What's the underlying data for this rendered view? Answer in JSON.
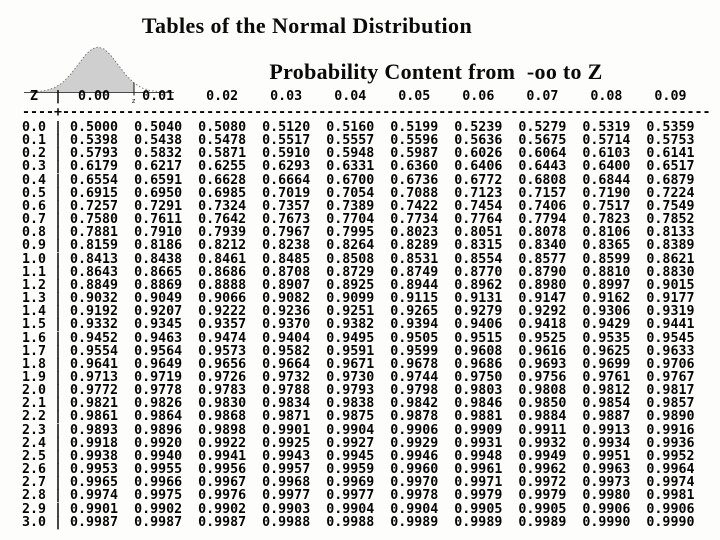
{
  "header": {
    "title": "Tables of the Normal Distribution",
    "subtitle": "Probability Content from  -oo to Z"
  },
  "figure": {
    "z_marker_label": "z"
  },
  "chart_data": {
    "type": "table",
    "title": "Tables of the Normal Distribution",
    "subtitle": "Probability Content from  -oo to Z",
    "corner_label": "Z",
    "columns": [
      "0.00",
      "0.01",
      "0.02",
      "0.03",
      "0.04",
      "0.05",
      "0.06",
      "0.07",
      "0.08",
      "0.09"
    ],
    "rows": [
      {
        "label": "0.0",
        "values": [
          "0.5000",
          "0.5040",
          "0.5080",
          "0.5120",
          "0.5160",
          "0.5199",
          "0.5239",
          "0.5279",
          "0.5319",
          "0.5359"
        ]
      },
      {
        "label": "0.1",
        "values": [
          "0.5398",
          "0.5438",
          "0.5478",
          "0.5517",
          "0.5557",
          "0.5596",
          "0.5636",
          "0.5675",
          "0.5714",
          "0.5753"
        ]
      },
      {
        "label": "0.2",
        "values": [
          "0.5793",
          "0.5832",
          "0.5871",
          "0.5910",
          "0.5948",
          "0.5987",
          "0.6026",
          "0.6064",
          "0.6103",
          "0.6141"
        ]
      },
      {
        "label": "0.3",
        "values": [
          "0.6179",
          "0.6217",
          "0.6255",
          "0.6293",
          "0.6331",
          "0.6360",
          "0.6406",
          "0.6443",
          "0.6400",
          "0.6517"
        ]
      },
      {
        "label": "0.4",
        "values": [
          "0.6554",
          "0.6591",
          "0.6628",
          "0.6664",
          "0.6700",
          "0.6736",
          "0.6772",
          "0.6808",
          "0.6844",
          "0.6879"
        ]
      },
      {
        "label": "0.5",
        "values": [
          "0.6915",
          "0.6950",
          "0.6985",
          "0.7019",
          "0.7054",
          "0.7088",
          "0.7123",
          "0.7157",
          "0.7190",
          "0.7224"
        ]
      },
      {
        "label": "0.6",
        "values": [
          "0.7257",
          "0.7291",
          "0.7324",
          "0.7357",
          "0.7389",
          "0.7422",
          "0.7454",
          "0.7406",
          "0.7517",
          "0.7549"
        ]
      },
      {
        "label": "0.7",
        "values": [
          "0.7580",
          "0.7611",
          "0.7642",
          "0.7673",
          "0.7704",
          "0.7734",
          "0.7764",
          "0.7794",
          "0.7823",
          "0.7852"
        ]
      },
      {
        "label": "0.8",
        "values": [
          "0.7881",
          "0.7910",
          "0.7939",
          "0.7967",
          "0.7995",
          "0.8023",
          "0.8051",
          "0.8078",
          "0.8106",
          "0.8133"
        ]
      },
      {
        "label": "0.9",
        "values": [
          "0.8159",
          "0.8186",
          "0.8212",
          "0.8238",
          "0.8264",
          "0.8289",
          "0.8315",
          "0.8340",
          "0.8365",
          "0.8389"
        ]
      },
      {
        "label": "1.0",
        "values": [
          "0.8413",
          "0.8438",
          "0.8461",
          "0.8485",
          "0.8508",
          "0.8531",
          "0.8554",
          "0.8577",
          "0.8599",
          "0.8621"
        ]
      },
      {
        "label": "1.1",
        "values": [
          "0.8643",
          "0.8665",
          "0.8686",
          "0.8708",
          "0.8729",
          "0.8749",
          "0.8770",
          "0.8790",
          "0.8810",
          "0.8830"
        ]
      },
      {
        "label": "1.2",
        "values": [
          "0.8849",
          "0.8869",
          "0.8888",
          "0.8907",
          "0.8925",
          "0.8944",
          "0.8962",
          "0.8980",
          "0.8997",
          "0.9015"
        ]
      },
      {
        "label": "1.3",
        "values": [
          "0.9032",
          "0.9049",
          "0.9066",
          "0.9082",
          "0.9099",
          "0.9115",
          "0.9131",
          "0.9147",
          "0.9162",
          "0.9177"
        ]
      },
      {
        "label": "1.4",
        "values": [
          "0.9192",
          "0.9207",
          "0.9222",
          "0.9236",
          "0.9251",
          "0.9265",
          "0.9279",
          "0.9292",
          "0.9306",
          "0.9319"
        ]
      },
      {
        "label": "1.5",
        "values": [
          "0.9332",
          "0.9345",
          "0.9357",
          "0.9370",
          "0.9382",
          "0.9394",
          "0.9406",
          "0.9418",
          "0.9429",
          "0.9441"
        ]
      },
      {
        "label": "1.6",
        "values": [
          "0.9452",
          "0.9463",
          "0.9474",
          "0.9404",
          "0.9495",
          "0.9505",
          "0.9515",
          "0.9525",
          "0.9535",
          "0.9545"
        ]
      },
      {
        "label": "1.7",
        "values": [
          "0.9554",
          "0.9564",
          "0.9573",
          "0.9582",
          "0.9591",
          "0.9599",
          "0.9608",
          "0.9616",
          "0.9625",
          "0.9633"
        ]
      },
      {
        "label": "1.8",
        "values": [
          "0.9641",
          "0.9649",
          "0.9656",
          "0.9664",
          "0.9671",
          "0.9678",
          "0.9686",
          "0.9693",
          "0.9699",
          "0.9706"
        ]
      },
      {
        "label": "1.9",
        "values": [
          "0.9713",
          "0.9719",
          "0.9726",
          "0.9732",
          "0.9730",
          "0.9744",
          "0.9750",
          "0.9756",
          "0.9761",
          "0.9767"
        ]
      },
      {
        "label": "2.0",
        "values": [
          "0.9772",
          "0.9778",
          "0.9783",
          "0.9788",
          "0.9793",
          "0.9798",
          "0.9803",
          "0.9808",
          "0.9812",
          "0.9817"
        ]
      },
      {
        "label": "2.1",
        "values": [
          "0.9821",
          "0.9826",
          "0.9830",
          "0.9834",
          "0.9838",
          "0.9842",
          "0.9846",
          "0.9850",
          "0.9854",
          "0.9857"
        ]
      },
      {
        "label": "2.2",
        "values": [
          "0.9861",
          "0.9864",
          "0.9868",
          "0.9871",
          "0.9875",
          "0.9878",
          "0.9881",
          "0.9884",
          "0.9887",
          "0.9890"
        ]
      },
      {
        "label": "2.3",
        "values": [
          "0.9893",
          "0.9896",
          "0.9898",
          "0.9901",
          "0.9904",
          "0.9906",
          "0.9909",
          "0.9911",
          "0.9913",
          "0.9916"
        ]
      },
      {
        "label": "2.4",
        "values": [
          "0.9918",
          "0.9920",
          "0.9922",
          "0.9925",
          "0.9927",
          "0.9929",
          "0.9931",
          "0.9932",
          "0.9934",
          "0.9936"
        ]
      },
      {
        "label": "2.5",
        "values": [
          "0.9938",
          "0.9940",
          "0.9941",
          "0.9943",
          "0.9945",
          "0.9946",
          "0.9948",
          "0.9949",
          "0.9951",
          "0.9952"
        ]
      },
      {
        "label": "2.6",
        "values": [
          "0.9953",
          "0.9955",
          "0.9956",
          "0.9957",
          "0.9959",
          "0.9960",
          "0.9961",
          "0.9962",
          "0.9963",
          "0.9964"
        ]
      },
      {
        "label": "2.7",
        "values": [
          "0.9965",
          "0.9966",
          "0.9967",
          "0.9968",
          "0.9969",
          "0.9970",
          "0.9971",
          "0.9972",
          "0.9973",
          "0.9974"
        ]
      },
      {
        "label": "2.8",
        "values": [
          "0.9974",
          "0.9975",
          "0.9976",
          "0.9977",
          "0.9977",
          "0.9978",
          "0.9979",
          "0.9979",
          "0.9980",
          "0.9981"
        ]
      },
      {
        "label": "2.9",
        "values": [
          "0.9901",
          "0.9902",
          "0.9902",
          "0.9903",
          "0.9904",
          "0.9904",
          "0.9905",
          "0.9905",
          "0.9906",
          "0.9906"
        ]
      },
      {
        "label": "3.0",
        "values": [
          "0.9987",
          "0.9987",
          "0.9987",
          "0.9988",
          "0.9988",
          "0.9989",
          "0.9989",
          "0.9989",
          "0.9990",
          "0.9990"
        ]
      }
    ]
  }
}
